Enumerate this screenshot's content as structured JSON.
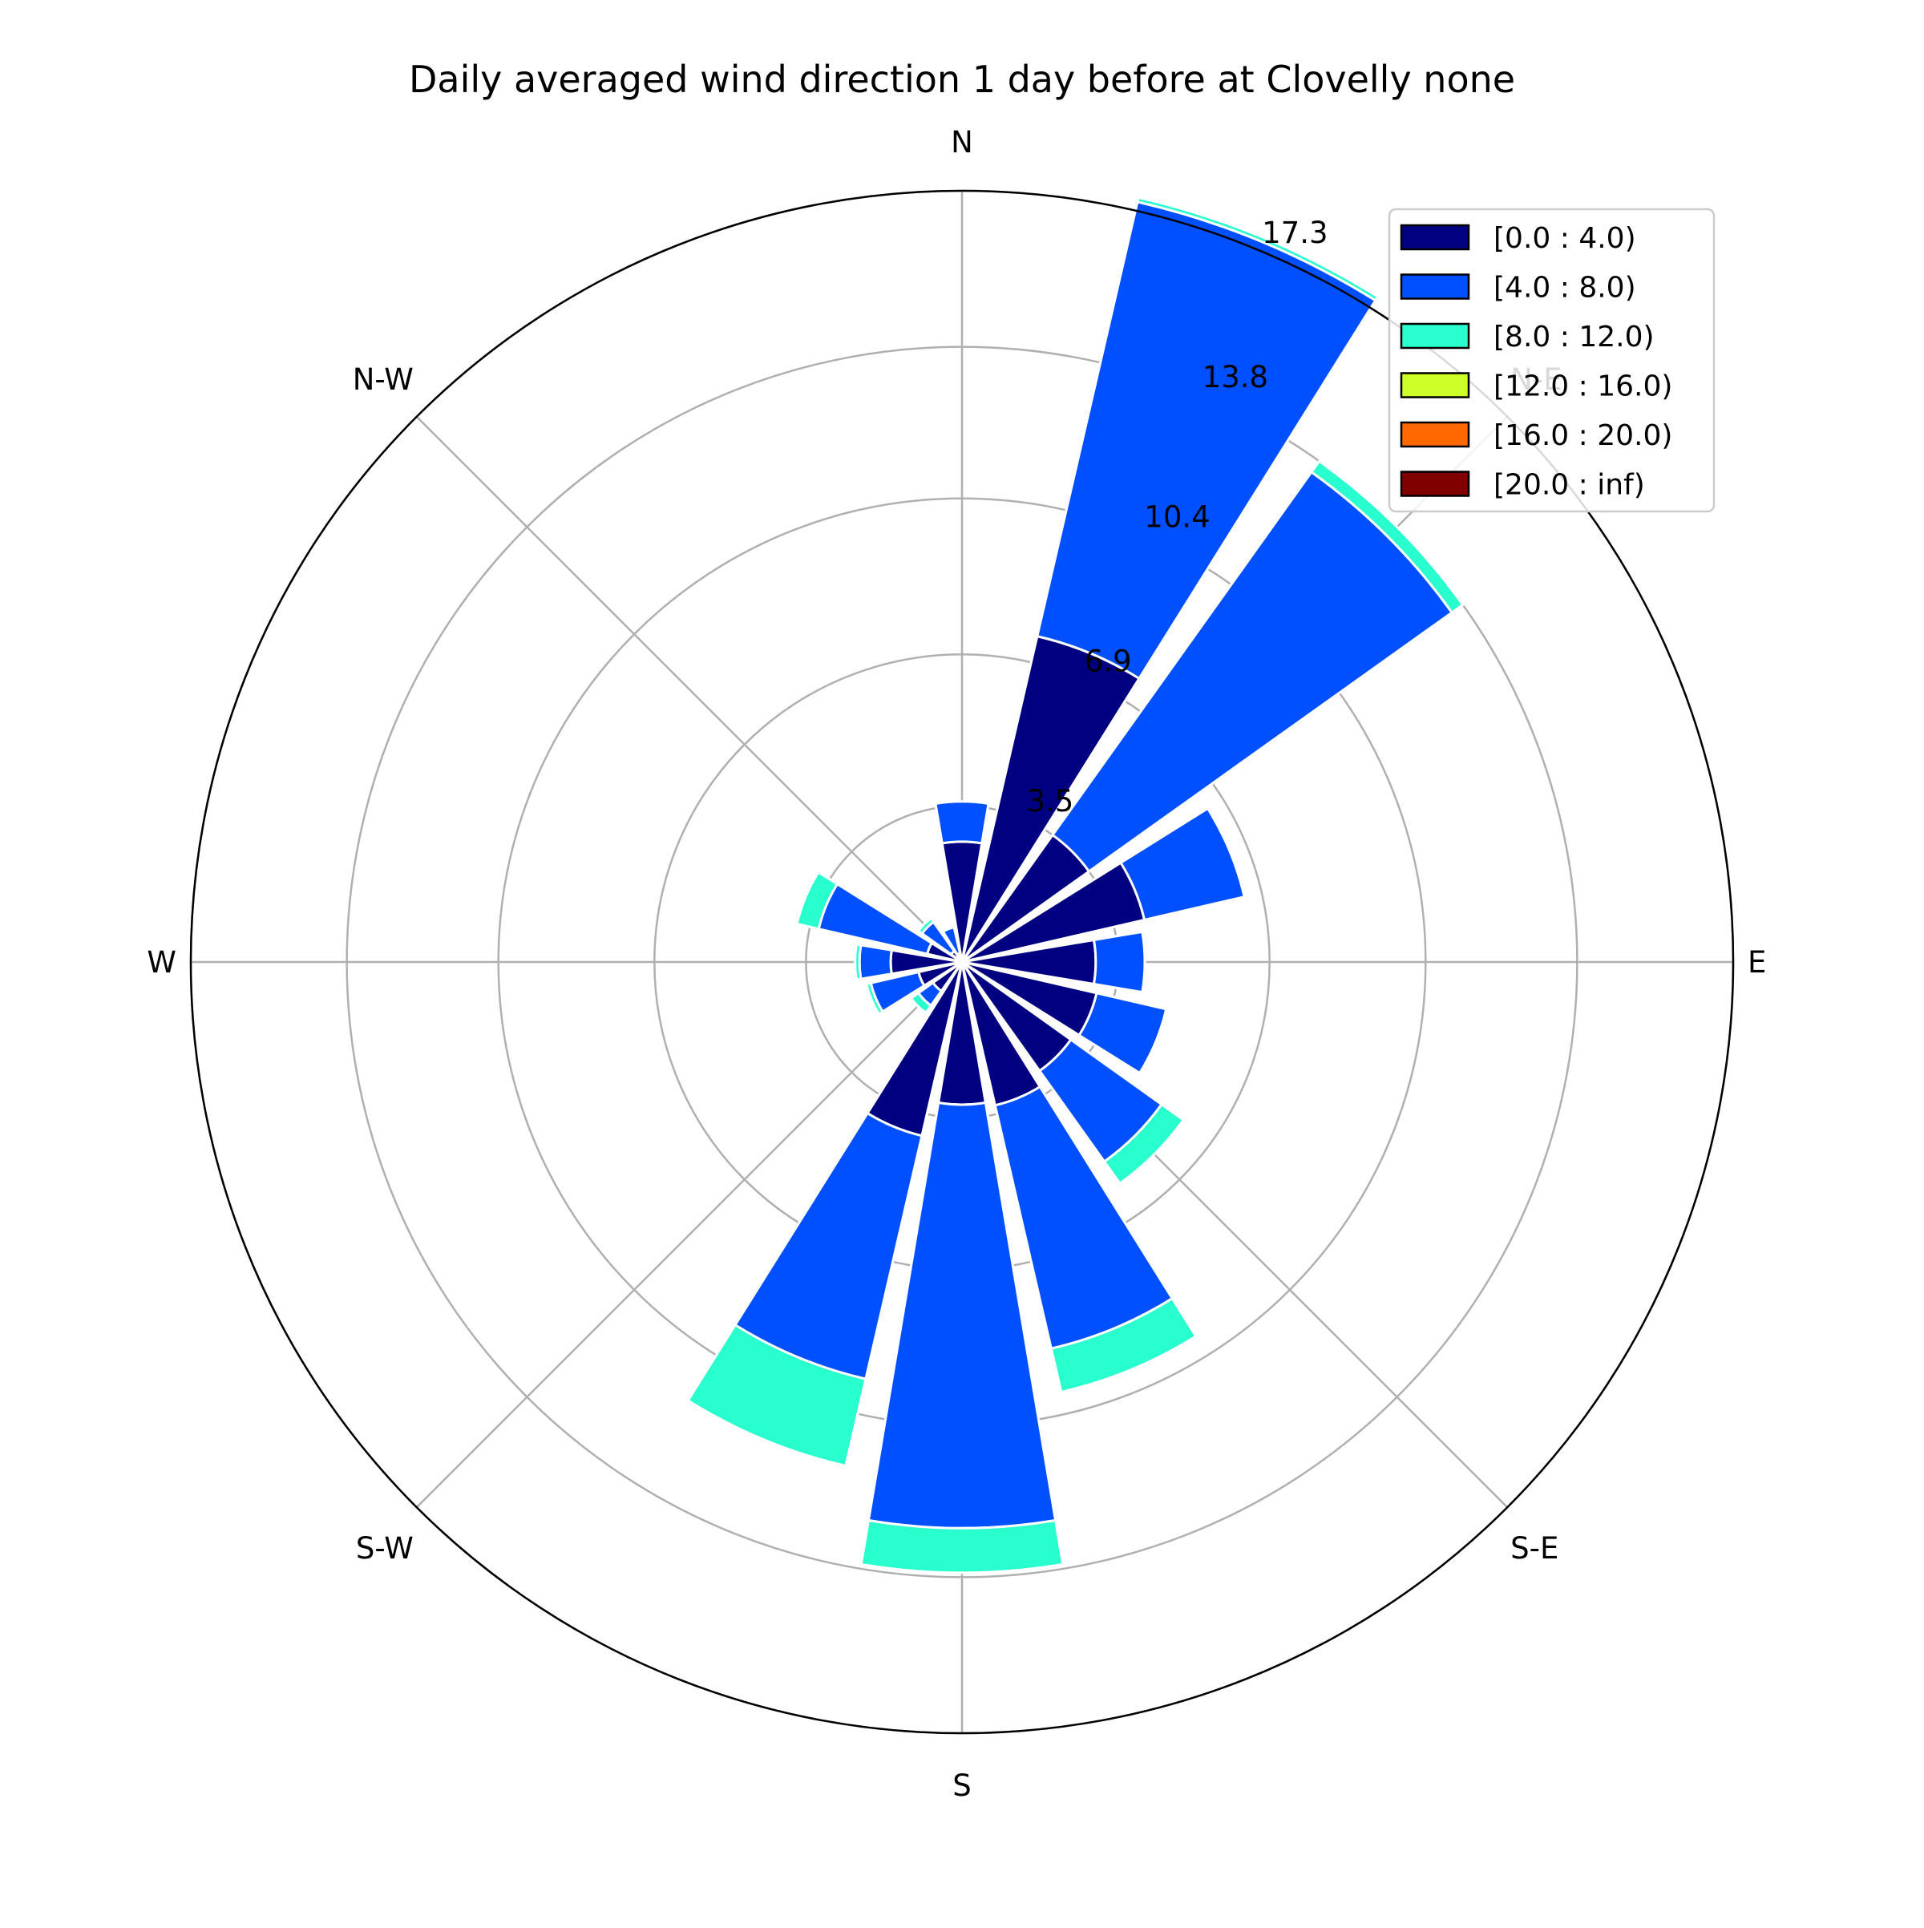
{
  "chart_data": {
    "type": "windrose",
    "title": "Daily averaged wind direction 1 day before at Clovelly none",
    "direction_labels": [
      "N",
      "N-E",
      "E",
      "S-E",
      "S",
      "S-W",
      "W",
      "N-W"
    ],
    "radial_ticks": [
      "3.5",
      "6.9",
      "10.4",
      "13.8",
      "17.3"
    ],
    "radial_tick_values": [
      3.5,
      6.9,
      10.4,
      13.8,
      17.3
    ],
    "rmax": 17.3,
    "legend_position": "top-right",
    "grid": true,
    "sector_directions_deg": [
      0,
      22.5,
      45,
      67.5,
      90,
      112.5,
      135,
      157.5,
      180,
      202.5,
      225,
      247.5,
      270,
      292.5,
      315,
      337.5
    ],
    "series": [
      {
        "label": "[0.0 : 4.0)",
        "color": "#000080",
        "values": [
          2.7,
          7.5,
          3.5,
          4.2,
          3.0,
          3.1,
          3.0,
          3.3,
          3.2,
          4.0,
          0.8,
          1.0,
          1.6,
          0.8,
          0.3,
          0.2
        ]
      },
      {
        "label": "[4.0 : 8.0)",
        "color": "#0050ff",
        "values": [
          0.9,
          10.0,
          10.0,
          2.3,
          1.1,
          1.6,
          2.5,
          5.6,
          9.5,
          5.6,
          0.4,
          1.1,
          0.7,
          2.5,
          0.8,
          0.6
        ]
      },
      {
        "label": "[8.0 : 12.0)",
        "color": "#29ffce",
        "values": [
          0.0,
          0.1,
          0.3,
          0.0,
          0.0,
          0.0,
          0.6,
          1.0,
          1.0,
          2.0,
          0.2,
          0.1,
          0.1,
          0.5,
          0.1,
          0.0
        ]
      },
      {
        "label": "[12.0 : 16.0)",
        "color": "#ceff29",
        "values": [
          0,
          0,
          0,
          0,
          0,
          0,
          0,
          0,
          0,
          0,
          0,
          0,
          0,
          0,
          0,
          0
        ]
      },
      {
        "label": "[16.0 : 20.0)",
        "color": "#ff6800",
        "values": [
          0,
          0,
          0,
          0,
          0,
          0,
          0,
          0,
          0,
          0,
          0,
          0,
          0,
          0,
          0,
          0
        ]
      },
      {
        "label": "[20.0 : inf)",
        "color": "#800000",
        "values": [
          0,
          0,
          0,
          0,
          0,
          0,
          0,
          0,
          0,
          0,
          0,
          0,
          0,
          0,
          0,
          0
        ]
      }
    ]
  }
}
